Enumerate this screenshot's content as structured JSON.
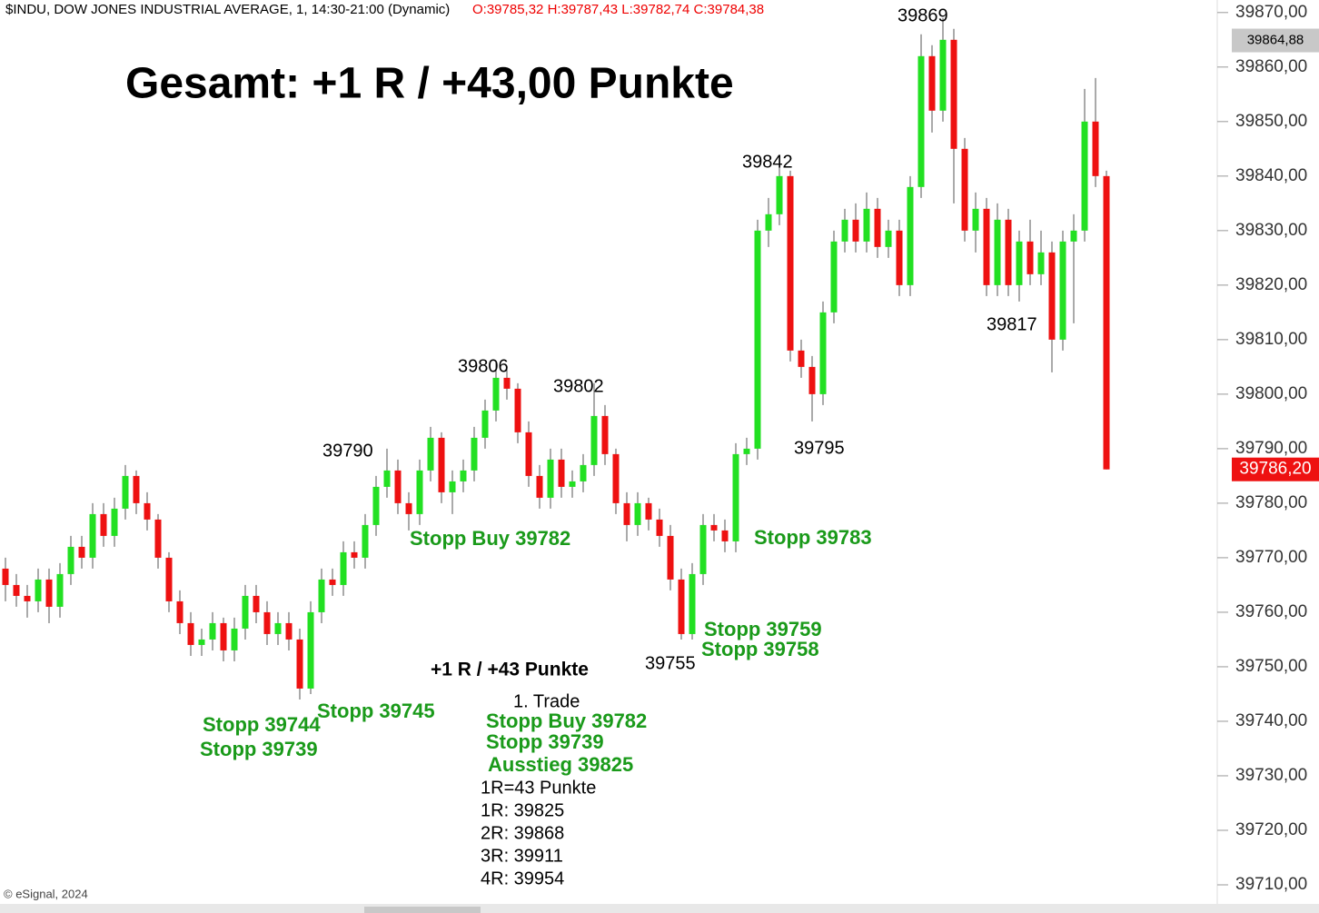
{
  "chart_data": {
    "type": "candlestick",
    "header": "$INDU, DOW JONES INDUSTRIAL AVERAGE, 1, 14:30-21:00 (Dynamic)",
    "ohlc_text": "O:39785,32 H:39787,43 L:39782,74 C:39784,38",
    "title": "Gesamt: +1 R / +43,00 Punkte",
    "footer": "© eSignal, 2024",
    "up_color": "#22e022",
    "down_color": "#ee1111",
    "ylim": [
      39706.5,
      39872.3
    ],
    "yticks": [
      {
        "value": 39870,
        "label": "39870,00"
      },
      {
        "value": 39860,
        "label": "39860,00"
      },
      {
        "value": 39850,
        "label": "39850,00"
      },
      {
        "value": 39840,
        "label": "39840,00"
      },
      {
        "value": 39830,
        "label": "39830,00"
      },
      {
        "value": 39820,
        "label": "39820,00"
      },
      {
        "value": 39810,
        "label": "39810,00"
      },
      {
        "value": 39800,
        "label": "39800,00"
      },
      {
        "value": 39790,
        "label": "39790,00"
      },
      {
        "value": 39780,
        "label": "39780,00"
      },
      {
        "value": 39770,
        "label": "39770,00"
      },
      {
        "value": 39760,
        "label": "39760,00"
      },
      {
        "value": 39750,
        "label": "39750,00"
      },
      {
        "value": 39740,
        "label": "39740,00"
      },
      {
        "value": 39730,
        "label": "39730,00"
      },
      {
        "value": 39720,
        "label": "39720,00"
      },
      {
        "value": 39710,
        "label": "39710,00"
      }
    ],
    "marker_price": {
      "value": 39864.88,
      "label": "39864,88"
    },
    "last_price": {
      "value": 39786.2,
      "label": "39786,20"
    },
    "ohlc": [
      [
        39768,
        39770,
        39762,
        39765
      ],
      [
        39765,
        39767,
        39761,
        39763
      ],
      [
        39763,
        39765,
        39759,
        39762
      ],
      [
        39762,
        39768,
        39760,
        39766
      ],
      [
        39766,
        39768,
        39758,
        39761
      ],
      [
        39761,
        39769,
        39759,
        39767
      ],
      [
        39767,
        39774,
        39765,
        39772
      ],
      [
        39772,
        39774,
        39768,
        39770
      ],
      [
        39770,
        39780,
        39768,
        39778
      ],
      [
        39778,
        39780,
        39772,
        39774
      ],
      [
        39774,
        39781,
        39772,
        39779
      ],
      [
        39779,
        39787,
        39777,
        39785
      ],
      [
        39785,
        39786,
        39778,
        39780
      ],
      [
        39780,
        39782,
        39775,
        39777
      ],
      [
        39777,
        39778,
        39768,
        39770
      ],
      [
        39770,
        39771,
        39760,
        39762
      ],
      [
        39762,
        39764,
        39756,
        39758
      ],
      [
        39758,
        39760,
        39752,
        39754
      ],
      [
        39754,
        39757,
        39752,
        39755
      ],
      [
        39755,
        39760,
        39753,
        39758
      ],
      [
        39758,
        39759,
        39751,
        39753
      ],
      [
        39753,
        39759,
        39751,
        39757
      ],
      [
        39757,
        39765,
        39755,
        39763
      ],
      [
        39763,
        39765,
        39758,
        39760
      ],
      [
        39760,
        39762,
        39754,
        39756
      ],
      [
        39756,
        39760,
        39754,
        39758
      ],
      [
        39758,
        39760,
        39753,
        39755
      ],
      [
        39755,
        39757,
        39744,
        39746
      ],
      [
        39746,
        39762,
        39745,
        39760
      ],
      [
        39760,
        39768,
        39758,
        39766
      ],
      [
        39766,
        39768,
        39763,
        39765
      ],
      [
        39765,
        39773,
        39763,
        39771
      ],
      [
        39771,
        39773,
        39768,
        39770
      ],
      [
        39770,
        39778,
        39768,
        39776
      ],
      [
        39776,
        39785,
        39774,
        39783
      ],
      [
        39783,
        39790,
        39781,
        39786
      ],
      [
        39786,
        39788,
        39778,
        39780
      ],
      [
        39780,
        39782,
        39775,
        39778
      ],
      [
        39778,
        39788,
        39776,
        39786
      ],
      [
        39786,
        39794,
        39784,
        39792
      ],
      [
        39792,
        39793,
        39780,
        39782
      ],
      [
        39782,
        39786,
        39778,
        39784
      ],
      [
        39784,
        39788,
        39782,
        39786
      ],
      [
        39786,
        39794,
        39784,
        39792
      ],
      [
        39792,
        39799,
        39790,
        39797
      ],
      [
        39797,
        39806,
        39795,
        39803
      ],
      [
        39803,
        39805,
        39799,
        39801
      ],
      [
        39801,
        39802,
        39791,
        39793
      ],
      [
        39793,
        39795,
        39783,
        39785
      ],
      [
        39785,
        39787,
        39779,
        39781
      ],
      [
        39781,
        39790,
        39779,
        39788
      ],
      [
        39788,
        39790,
        39781,
        39783
      ],
      [
        39783,
        39786,
        39781,
        39784
      ],
      [
        39784,
        39789,
        39782,
        39787
      ],
      [
        39787,
        39802,
        39785,
        39796
      ],
      [
        39796,
        39798,
        39787,
        39789
      ],
      [
        39789,
        39790,
        39778,
        39780
      ],
      [
        39780,
        39782,
        39773,
        39776
      ],
      [
        39776,
        39782,
        39774,
        39780
      ],
      [
        39780,
        39781,
        39775,
        39777
      ],
      [
        39777,
        39779,
        39772,
        39774
      ],
      [
        39774,
        39776,
        39764,
        39766
      ],
      [
        39766,
        39768,
        39755,
        39756
      ],
      [
        39756,
        39769,
        39755,
        39767
      ],
      [
        39767,
        39778,
        39765,
        39776
      ],
      [
        39776,
        39778,
        39773,
        39775
      ],
      [
        39775,
        39777,
        39771,
        39773
      ],
      [
        39773,
        39791,
        39771,
        39789
      ],
      [
        39789,
        39792,
        39787,
        39790
      ],
      [
        39790,
        39832,
        39788,
        39830
      ],
      [
        39830,
        39836,
        39827,
        39833
      ],
      [
        39833,
        39842,
        39831,
        39840
      ],
      [
        39840,
        39841,
        39806,
        39808
      ],
      [
        39808,
        39810,
        39803,
        39805
      ],
      [
        39805,
        39807,
        39795,
        39800
      ],
      [
        39800,
        39817,
        39798,
        39815
      ],
      [
        39815,
        39830,
        39813,
        39828
      ],
      [
        39828,
        39834,
        39826,
        39832
      ],
      [
        39832,
        39835,
        39826,
        39828
      ],
      [
        39828,
        39837,
        39826,
        39834
      ],
      [
        39834,
        39836,
        39825,
        39827
      ],
      [
        39827,
        39832,
        39825,
        39830
      ],
      [
        39830,
        39832,
        39818,
        39820
      ],
      [
        39820,
        39840,
        39818,
        39838
      ],
      [
        39838,
        39866,
        39836,
        39862
      ],
      [
        39862,
        39864,
        39848,
        39852
      ],
      [
        39852,
        39869,
        39850,
        39865
      ],
      [
        39865,
        39867,
        39835,
        39845
      ],
      [
        39845,
        39847,
        39828,
        39830
      ],
      [
        39830,
        39837,
        39826,
        39834
      ],
      [
        39834,
        39836,
        39818,
        39820
      ],
      [
        39820,
        39835,
        39818,
        39832
      ],
      [
        39832,
        39834,
        39818,
        39820
      ],
      [
        39820,
        39830,
        39817,
        39828
      ],
      [
        39828,
        39832,
        39820,
        39822
      ],
      [
        39822,
        39830,
        39820,
        39826
      ],
      [
        39826,
        39828,
        39804,
        39810
      ],
      [
        39810,
        39830,
        39808,
        39828
      ],
      [
        39828,
        39833,
        39813,
        39830
      ],
      [
        39830,
        39856,
        39828,
        39850
      ],
      [
        39850,
        39858,
        39838,
        39840
      ],
      [
        39840,
        39841,
        39786.2,
        39786.2
      ]
    ],
    "peak_labels": [
      "39869",
      "39842",
      "39806",
      "39802",
      "39790",
      "39795",
      "39817",
      "39755"
    ],
    "stop_labels": [
      "Stopp Buy 39782",
      "Stopp 39783",
      "Stopp 39759",
      "Stopp 39758",
      "Stopp 39745",
      "Stopp 39744",
      "Stopp 39739"
    ],
    "trade": {
      "result": "+1 R / +43 Punkte",
      "name": "1. Trade",
      "orders": [
        "Stopp Buy 39782",
        "Stopp 39739",
        "Ausstieg 39825"
      ],
      "targets": [
        "1R=43 Punkte",
        "1R: 39825",
        "2R: 39868",
        "3R: 39911",
        "4R: 39954"
      ]
    }
  }
}
